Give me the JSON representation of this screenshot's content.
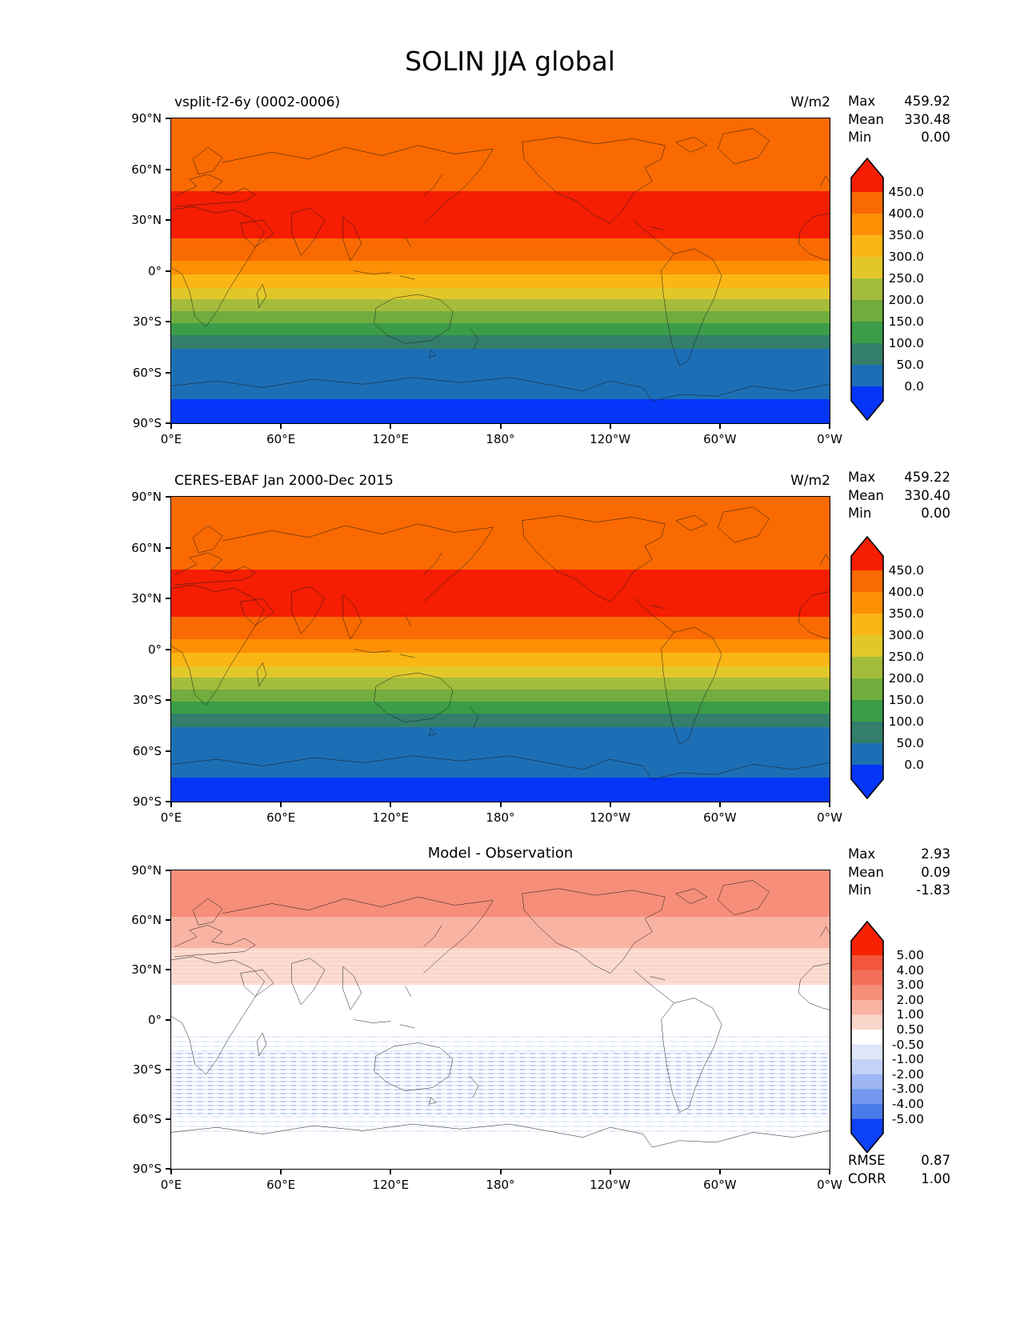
{
  "title": "SOLIN JJA global",
  "axes": {
    "x_ticks": [
      "0°E",
      "60°E",
      "120°E",
      "180°",
      "120°W",
      "60°W",
      "0°W"
    ],
    "y_ticks": [
      "90°N",
      "60°N",
      "30°N",
      "0°",
      "30°S",
      "60°S",
      "90°S"
    ]
  },
  "colorbar_main": {
    "tick_labels": [
      "450.0",
      "400.0",
      "350.0",
      "300.0",
      "250.0",
      "200.0",
      "150.0",
      "100.0",
      "50.0",
      "0.0"
    ],
    "segment_colors": [
      "#fa6a02",
      "#fd8f05",
      "#fbb615",
      "#e2c72b",
      "#a4bc3b",
      "#71ad3e",
      "#3b9d48",
      "#337f6b",
      "#1d6fb5"
    ],
    "cap_top_color": "#f51d02",
    "cap_bottom_color": "#0435f9"
  },
  "colorbar_diff": {
    "tick_labels": [
      "5.00",
      "4.00",
      "3.00",
      "2.00",
      "1.00",
      "0.50",
      "-0.50",
      "-1.00",
      "-2.00",
      "-3.00",
      "-4.00",
      "-5.00"
    ],
    "segment_colors": [
      "#f4563d",
      "#f47058",
      "#f68e79",
      "#f9b3a3",
      "#fbd6cb",
      "#ffffff",
      "#dfe6fa",
      "#c4d2f8",
      "#9db6f3",
      "#7598ee",
      "#4b7be9"
    ],
    "cap_top_color": "#f92102",
    "cap_bottom_color": "#0d41f6"
  },
  "panels": [
    {
      "title": "vsplit-f2-6y (0002-0006)",
      "units": "W/m2",
      "colorbar": "main",
      "stats": [
        {
          "label": "Max",
          "value": "459.92"
        },
        {
          "label": "Mean",
          "value": "330.48"
        },
        {
          "label": "Min",
          "value": "0.00"
        }
      ],
      "bands": [
        {
          "from": 90,
          "to": 47,
          "color": "#fa6a02"
        },
        {
          "from": 47,
          "to": 19,
          "color": "#f51d02"
        },
        {
          "from": 19,
          "to": 6,
          "color": "#fa6a02"
        },
        {
          "from": 6,
          "to": -2,
          "color": "#fd8f05"
        },
        {
          "from": -2,
          "to": -10,
          "color": "#fbb615"
        },
        {
          "from": -10,
          "to": -17,
          "color": "#e2c72b"
        },
        {
          "from": -17,
          "to": -24,
          "color": "#a4bc3b"
        },
        {
          "from": -24,
          "to": -31,
          "color": "#71ad3e"
        },
        {
          "from": -31,
          "to": -38,
          "color": "#3b9d48"
        },
        {
          "from": -38,
          "to": -46,
          "color": "#337f6b"
        },
        {
          "from": -46,
          "to": -76,
          "color": "#1d6fb5"
        },
        {
          "from": -76,
          "to": -90,
          "color": "#0435f9"
        }
      ]
    },
    {
      "title": "CERES-EBAF Jan 2000-Dec 2015",
      "units": "W/m2",
      "colorbar": "main",
      "stats": [
        {
          "label": "Max",
          "value": "459.22"
        },
        {
          "label": "Mean",
          "value": "330.40"
        },
        {
          "label": "Min",
          "value": "0.00"
        }
      ],
      "bands": [
        {
          "from": 90,
          "to": 47,
          "color": "#fa6a02"
        },
        {
          "from": 47,
          "to": 19,
          "color": "#f51d02"
        },
        {
          "from": 19,
          "to": 6,
          "color": "#fa6a02"
        },
        {
          "from": 6,
          "to": -2,
          "color": "#fd8f05"
        },
        {
          "from": -2,
          "to": -10,
          "color": "#fbb615"
        },
        {
          "from": -10,
          "to": -17,
          "color": "#e2c72b"
        },
        {
          "from": -17,
          "to": -24,
          "color": "#a4bc3b"
        },
        {
          "from": -24,
          "to": -31,
          "color": "#71ad3e"
        },
        {
          "from": -31,
          "to": -38,
          "color": "#3b9d48"
        },
        {
          "from": -38,
          "to": -46,
          "color": "#337f6b"
        },
        {
          "from": -46,
          "to": -76,
          "color": "#1d6fb5"
        },
        {
          "from": -76,
          "to": -90,
          "color": "#0435f9"
        }
      ]
    },
    {
      "title": "Model - Observation",
      "units": "",
      "colorbar": "diff",
      "stats": [
        {
          "label": "Max",
          "value": "2.93"
        },
        {
          "label": "Mean",
          "value": "0.09"
        },
        {
          "label": "Min",
          "value": "-1.83"
        }
      ],
      "extra_stats": [
        {
          "label": "RMSE",
          "value": "0.87"
        },
        {
          "label": "CORR",
          "value": "1.00"
        }
      ],
      "bands": [
        {
          "from": 90,
          "to": 62,
          "color": "#f68e79"
        },
        {
          "from": 62,
          "to": 43,
          "color": "#f9b3a3"
        },
        {
          "from": 43,
          "to": 21,
          "color": "#fbd6cb",
          "texture": "speckle-pink"
        },
        {
          "from": 21,
          "to": -10,
          "color": "#ffffff"
        },
        {
          "from": -10,
          "to": -20,
          "color": "#ffffff",
          "texture": "speckle-blue-light"
        },
        {
          "from": -20,
          "to": -58,
          "color": "#ffffff",
          "texture": "speckle-blue"
        },
        {
          "from": -58,
          "to": -68,
          "color": "#ffffff",
          "texture": "speckle-blue-light"
        },
        {
          "from": -68,
          "to": -90,
          "color": "#ffffff"
        }
      ]
    }
  ],
  "chart_data": [
    {
      "type": "heatmap",
      "subtype": "filled-contour latitude-longitude map",
      "title": "vsplit-f2-6y (0002-0006)",
      "figure_title": "SOLIN JJA global",
      "units": "W/m2",
      "x_range_deg": [
        0,
        360
      ],
      "y_range_deg_lat": [
        -90,
        90
      ],
      "contour_levels": [
        0,
        50,
        100,
        150,
        200,
        250,
        300,
        350,
        400,
        450
      ],
      "stats": {
        "max": 459.92,
        "mean": 330.48,
        "min": 0.0
      },
      "zonal_profile": [
        {
          "lat_from": 90,
          "lat_to": 47,
          "value_wm2": "400-450"
        },
        {
          "lat_from": 47,
          "lat_to": 19,
          "value_wm2": ">450"
        },
        {
          "lat_from": 19,
          "lat_to": 6,
          "value_wm2": "400-450"
        },
        {
          "lat_from": 6,
          "lat_to": -2,
          "value_wm2": "350-400"
        },
        {
          "lat_from": -2,
          "lat_to": -10,
          "value_wm2": "300-350"
        },
        {
          "lat_from": -10,
          "lat_to": -17,
          "value_wm2": "250-300"
        },
        {
          "lat_from": -17,
          "lat_to": -24,
          "value_wm2": "200-250"
        },
        {
          "lat_from": -24,
          "lat_to": -31,
          "value_wm2": "150-200"
        },
        {
          "lat_from": -31,
          "lat_to": -38,
          "value_wm2": "100-150"
        },
        {
          "lat_from": -38,
          "lat_to": -46,
          "value_wm2": "50-100"
        },
        {
          "lat_from": -46,
          "lat_to": -76,
          "value_wm2": "0-50"
        },
        {
          "lat_from": -76,
          "lat_to": -90,
          "value_wm2": "0"
        }
      ]
    },
    {
      "type": "heatmap",
      "subtype": "filled-contour latitude-longitude map",
      "title": "CERES-EBAF Jan 2000-Dec 2015",
      "units": "W/m2",
      "x_range_deg": [
        0,
        360
      ],
      "y_range_deg_lat": [
        -90,
        90
      ],
      "contour_levels": [
        0,
        50,
        100,
        150,
        200,
        250,
        300,
        350,
        400,
        450
      ],
      "stats": {
        "max": 459.22,
        "mean": 330.4,
        "min": 0.0
      },
      "zonal_profile": [
        {
          "lat_from": 90,
          "lat_to": 47,
          "value_wm2": "400-450"
        },
        {
          "lat_from": 47,
          "lat_to": 19,
          "value_wm2": ">450"
        },
        {
          "lat_from": 19,
          "lat_to": 6,
          "value_wm2": "400-450"
        },
        {
          "lat_from": 6,
          "lat_to": -2,
          "value_wm2": "350-400"
        },
        {
          "lat_from": -2,
          "lat_to": -10,
          "value_wm2": "300-350"
        },
        {
          "lat_from": -10,
          "lat_to": -17,
          "value_wm2": "250-300"
        },
        {
          "lat_from": -17,
          "lat_to": -24,
          "value_wm2": "200-250"
        },
        {
          "lat_from": -24,
          "lat_to": -31,
          "value_wm2": "150-200"
        },
        {
          "lat_from": -31,
          "lat_to": -38,
          "value_wm2": "100-150"
        },
        {
          "lat_from": -38,
          "lat_to": -46,
          "value_wm2": "50-100"
        },
        {
          "lat_from": -46,
          "lat_to": -76,
          "value_wm2": "0-50"
        },
        {
          "lat_from": -76,
          "lat_to": -90,
          "value_wm2": "0"
        }
      ]
    },
    {
      "type": "heatmap",
      "subtype": "filled-contour difference map (model minus observation)",
      "title": "Model - Observation",
      "units": "W/m2",
      "x_range_deg": [
        0,
        360
      ],
      "y_range_deg_lat": [
        -90,
        90
      ],
      "contour_levels": [
        -5,
        -4,
        -3,
        -2,
        -1,
        -0.5,
        0.5,
        1,
        2,
        3,
        4,
        5
      ],
      "stats": {
        "max": 2.93,
        "mean": 0.09,
        "min": -1.83,
        "rmse": 0.87,
        "corr": 1.0
      },
      "zonal_profile": [
        {
          "lat_from": 90,
          "lat_to": 62,
          "value_wm2": "2 to 3"
        },
        {
          "lat_from": 62,
          "lat_to": 43,
          "value_wm2": "1 to 2"
        },
        {
          "lat_from": 43,
          "lat_to": 21,
          "value_wm2": "0.5 to 1"
        },
        {
          "lat_from": 21,
          "lat_to": -10,
          "value_wm2": "-0.5 to 0.5"
        },
        {
          "lat_from": -10,
          "lat_to": -20,
          "value_wm2": "-1 to -0.5 (patchy)"
        },
        {
          "lat_from": -20,
          "lat_to": -58,
          "value_wm2": "-2 to -0.5 (patchy)"
        },
        {
          "lat_from": -58,
          "lat_to": -68,
          "value_wm2": "-1 to -0.5 (patchy)"
        },
        {
          "lat_from": -68,
          "lat_to": -90,
          "value_wm2": "-0.5 to 0.5"
        }
      ]
    }
  ]
}
